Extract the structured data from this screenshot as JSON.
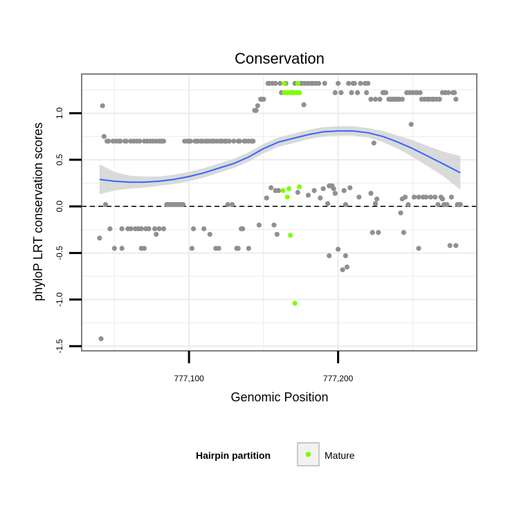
{
  "chart_data": {
    "type": "scatter",
    "title": "Conservation",
    "xlabel": "Genomic Position",
    "ylabel": "phyloP LRT conservation scores",
    "xlim": [
      777028,
      777293
    ],
    "ylim": [
      -1.55,
      1.42
    ],
    "x_ticks": [
      777100,
      777200
    ],
    "x_tick_labels": [
      "777,100",
      "777,200"
    ],
    "y_ticks": [
      -1.5,
      -1.0,
      -0.5,
      0.0,
      0.5,
      1.0
    ],
    "y_tick_labels": [
      "-1.5",
      "-1.0",
      "-0.5",
      "0.0",
      "0.5",
      "1.0"
    ],
    "grid": true,
    "reference_line": {
      "y": 0.0,
      "style": "dashed",
      "color": "#000000"
    },
    "legend": {
      "title": "Hairpin partition",
      "position": "bottom",
      "entries": [
        {
          "label": "Mature",
          "color": "#7fff00"
        }
      ]
    },
    "colors": {
      "points": "#909090",
      "mature": "#7fff00",
      "smooth_line": "#3366ff",
      "ribbon": "#d3d3d3",
      "panel_border": "#808080",
      "grid": "#ebebeb"
    },
    "series": [
      {
        "values": [
          [
            777040,
            -0.34
          ],
          [
            777041,
            -1.42
          ],
          [
            777042,
            1.08
          ],
          [
            777043,
            0.75
          ],
          [
            777044,
            0.02
          ],
          [
            777045,
            0.7
          ],
          [
            777046,
            0.7
          ],
          [
            777047,
            -0.24
          ],
          [
            777049,
            0.7
          ],
          [
            777050,
            -0.45
          ],
          [
            777051,
            0.7
          ],
          [
            777053,
            0.7
          ],
          [
            777054,
            0.7
          ],
          [
            777055,
            -0.45
          ],
          [
            777055,
            -0.24
          ],
          [
            777057,
            0.7
          ],
          [
            777058,
            0.7
          ],
          [
            777059,
            -0.24
          ],
          [
            777061,
            0.7
          ],
          [
            777061,
            -0.24
          ],
          [
            777063,
            0.7
          ],
          [
            777064,
            -0.24
          ],
          [
            777065,
            0.7
          ],
          [
            777066,
            -0.24
          ],
          [
            777067,
            0.7
          ],
          [
            777068,
            -0.45
          ],
          [
            777068,
            -0.24
          ],
          [
            777070,
            0.7
          ],
          [
            777070,
            -0.45
          ],
          [
            777071,
            -0.24
          ],
          [
            777072,
            0.7
          ],
          [
            777073,
            -0.24
          ],
          [
            777074,
            0.7
          ],
          [
            777076,
            0.7
          ],
          [
            777077,
            -0.24
          ],
          [
            777078,
            0.7
          ],
          [
            777078,
            -0.3
          ],
          [
            777080,
            0.7
          ],
          [
            777080,
            -0.24
          ],
          [
            777081,
            0.7
          ],
          [
            777082,
            0.7
          ],
          [
            777083,
            -0.24
          ],
          [
            777083,
            0.7
          ],
          [
            777085,
            0.02
          ],
          [
            777086,
            0.02
          ],
          [
            777087,
            0.02
          ],
          [
            777088,
            0.02
          ],
          [
            777089,
            0.02
          ],
          [
            777090,
            0.02
          ],
          [
            777091,
            0.02
          ],
          [
            777092,
            0.02
          ],
          [
            777093,
            0.02
          ],
          [
            777094,
            0.02
          ],
          [
            777095,
            0.02
          ],
          [
            777096,
            0.02
          ],
          [
            777097,
            0.7
          ],
          [
            777099,
            0.7
          ],
          [
            777100,
            0.7
          ],
          [
            777101,
            0.7
          ],
          [
            777102,
            -0.45
          ],
          [
            777103,
            -0.24
          ],
          [
            777104,
            0.7
          ],
          [
            777105,
            0.7
          ],
          [
            777106,
            0.7
          ],
          [
            777108,
            0.7
          ],
          [
            777109,
            0.7
          ],
          [
            777110,
            -0.24
          ],
          [
            777111,
            0.7
          ],
          [
            777112,
            0.7
          ],
          [
            777113,
            0.7
          ],
          [
            777114,
            -0.3
          ],
          [
            777115,
            0.7
          ],
          [
            777116,
            0.7
          ],
          [
            777117,
            0.7
          ],
          [
            777118,
            -0.45
          ],
          [
            777119,
            0.7
          ],
          [
            777120,
            -0.45
          ],
          [
            777121,
            0.7
          ],
          [
            777122,
            0.7
          ],
          [
            777124,
            0.7
          ],
          [
            777125,
            0.7
          ],
          [
            777126,
            0.02
          ],
          [
            777127,
            0.7
          ],
          [
            777129,
            0.02
          ],
          [
            777130,
            0.7
          ],
          [
            777132,
            -0.45
          ],
          [
            777133,
            0.7
          ],
          [
            777133,
            -0.45
          ],
          [
            777134,
            0.7
          ],
          [
            777135,
            -0.24
          ],
          [
            777136,
            -0.24
          ],
          [
            777137,
            0.7
          ],
          [
            777138,
            0.7
          ],
          [
            777140,
            -0.45
          ],
          [
            777140,
            0.7
          ],
          [
            777142,
            0.7
          ],
          [
            777143,
            0.7
          ],
          [
            777144,
            1.03
          ],
          [
            777145,
            1.03
          ],
          [
            777146,
            1.08
          ],
          [
            777147,
            -0.2
          ],
          [
            777148,
            1.15
          ],
          [
            777149,
            1.15
          ],
          [
            777150,
            1.15
          ],
          [
            777152,
            0.09
          ],
          [
            777153,
            1.32
          ],
          [
            777154,
            1.32
          ],
          [
            777155,
            0.2
          ],
          [
            777156,
            1.32
          ],
          [
            777157,
            -0.2
          ],
          [
            777158,
            0.17
          ],
          [
            777158,
            1.32
          ],
          [
            777159,
            -0.3
          ],
          [
            777160,
            0.17
          ],
          [
            777161,
            1.32
          ],
          [
            777162,
            1.22
          ],
          [
            777165,
            1.32
          ],
          [
            777169,
            1.22
          ],
          [
            777171,
            1.32
          ],
          [
            777173,
            0.15
          ],
          [
            777174,
            1.22
          ],
          [
            777175,
            1.32
          ],
          [
            777176,
            1.32
          ],
          [
            777177,
            1.09
          ],
          [
            777178,
            1.32
          ],
          [
            777180,
            1.32
          ],
          [
            777180,
            0.12
          ],
          [
            777182,
            1.32
          ],
          [
            777183,
            1.32
          ],
          [
            777184,
            0.17
          ],
          [
            777185,
            1.32
          ],
          [
            777187,
            1.32
          ],
          [
            777188,
            0.09
          ],
          [
            777190,
            0.19
          ],
          [
            777191,
            1.32
          ],
          [
            777193,
            0.03
          ],
          [
            777194,
            0.22
          ],
          [
            777194,
            -0.53
          ],
          [
            777195,
            0.22
          ],
          [
            777196,
            0.22
          ],
          [
            777197,
            0.19
          ],
          [
            777198,
            1.22
          ],
          [
            777198,
            0.14
          ],
          [
            777200,
            1.32
          ],
          [
            777200,
            -0.46
          ],
          [
            777202,
            1.22
          ],
          [
            777203,
            -0.68
          ],
          [
            777204,
            0.17
          ],
          [
            777205,
            -0.53
          ],
          [
            777205,
            0.02
          ],
          [
            777206,
            -0.65
          ],
          [
            777207,
            1.32
          ],
          [
            777208,
            0.2
          ],
          [
            777209,
            1.22
          ],
          [
            777210,
            1.32
          ],
          [
            777211,
            1.32
          ],
          [
            777213,
            1.22
          ],
          [
            777214,
            0.1
          ],
          [
            777215,
            1.32
          ],
          [
            777218,
            1.32
          ],
          [
            777219,
            1.22
          ],
          [
            777220,
            1.32
          ],
          [
            777222,
            0.14
          ],
          [
            777222,
            1.15
          ],
          [
            777223,
            -0.28
          ],
          [
            777224,
            0.68
          ],
          [
            777225,
            1.15
          ],
          [
            777225,
            0.03
          ],
          [
            777226,
            0.08
          ],
          [
            777227,
            -0.28
          ],
          [
            777228,
            1.15
          ],
          [
            777230,
            1.22
          ],
          [
            777231,
            1.22
          ],
          [
            777232,
            1.22
          ],
          [
            777234,
            1.15
          ],
          [
            777235,
            1.15
          ],
          [
            777236,
            1.15
          ],
          [
            777237,
            1.15
          ],
          [
            777238,
            1.15
          ],
          [
            777239,
            1.15
          ],
          [
            777240,
            1.15
          ],
          [
            777241,
            1.15
          ],
          [
            777242,
            -0.07
          ],
          [
            777243,
            0.08
          ],
          [
            777243,
            1.15
          ],
          [
            777244,
            -0.28
          ],
          [
            777245,
            0.1
          ],
          [
            777246,
            1.22
          ],
          [
            777247,
            0.02
          ],
          [
            777248,
            1.22
          ],
          [
            777249,
            0.88
          ],
          [
            777250,
            1.22
          ],
          [
            777251,
            0.1
          ],
          [
            777252,
            1.22
          ],
          [
            777253,
            1.22
          ],
          [
            777254,
            0.1
          ],
          [
            777254,
            -0.45
          ],
          [
            777255,
            1.22
          ],
          [
            777256,
            1.15
          ],
          [
            777257,
            0.1
          ],
          [
            777258,
            1.15
          ],
          [
            777259,
            0.1
          ],
          [
            777260,
            1.15
          ],
          [
            777261,
            1.15
          ],
          [
            777262,
            0.1
          ],
          [
            777263,
            1.15
          ],
          [
            777264,
            1.15
          ],
          [
            777265,
            0.1
          ],
          [
            777266,
            1.15
          ],
          [
            777267,
            0.02
          ],
          [
            777268,
            1.15
          ],
          [
            777269,
            0.1
          ],
          [
            777270,
            0.08
          ],
          [
            777270,
            1.22
          ],
          [
            777271,
            0.02
          ],
          [
            777272,
            1.22
          ],
          [
            777273,
            0.02
          ],
          [
            777274,
            1.22
          ],
          [
            777275,
            -0.42
          ],
          [
            777276,
            0.1
          ],
          [
            777277,
            1.22
          ],
          [
            777278,
            1.22
          ],
          [
            777279,
            -0.42
          ],
          [
            777279,
            1.15
          ],
          [
            777280,
            0.02
          ],
          [
            777281,
            0.02
          ],
          [
            777282,
            0.02
          ]
        ]
      },
      {
        "name": "Mature",
        "values": [
          [
            777163,
            0.17
          ],
          [
            777164,
            1.32
          ],
          [
            777164,
            1.22
          ],
          [
            777166,
            0.1
          ],
          [
            777166,
            1.22
          ],
          [
            777167,
            0.19
          ],
          [
            777168,
            -0.31
          ],
          [
            777168,
            1.22
          ],
          [
            777170,
            1.22
          ],
          [
            777171,
            -1.04
          ],
          [
            777172,
            1.22
          ],
          [
            777173,
            1.32
          ],
          [
            777174,
            0.21
          ],
          [
            777174,
            1.22
          ]
        ]
      }
    ],
    "smooth": {
      "x": [
        777040,
        777050,
        777060,
        777070,
        777080,
        777090,
        777100,
        777110,
        777120,
        777130,
        777140,
        777150,
        777160,
        777170,
        777180,
        777190,
        777200,
        777210,
        777220,
        777230,
        777240,
        777250,
        777260,
        777270,
        777282
      ],
      "y": [
        0.29,
        0.27,
        0.26,
        0.26,
        0.27,
        0.29,
        0.32,
        0.36,
        0.41,
        0.46,
        0.53,
        0.62,
        0.69,
        0.73,
        0.77,
        0.8,
        0.81,
        0.81,
        0.79,
        0.75,
        0.69,
        0.62,
        0.54,
        0.46,
        0.36
      ],
      "lower": [
        0.13,
        0.17,
        0.19,
        0.2,
        0.22,
        0.24,
        0.27,
        0.31,
        0.36,
        0.41,
        0.48,
        0.57,
        0.64,
        0.68,
        0.72,
        0.75,
        0.76,
        0.76,
        0.74,
        0.69,
        0.62,
        0.53,
        0.43,
        0.33,
        0.18
      ],
      "upper": [
        0.45,
        0.37,
        0.33,
        0.32,
        0.32,
        0.34,
        0.37,
        0.41,
        0.46,
        0.51,
        0.58,
        0.67,
        0.74,
        0.78,
        0.82,
        0.85,
        0.86,
        0.86,
        0.84,
        0.81,
        0.76,
        0.71,
        0.65,
        0.59,
        0.54
      ]
    }
  }
}
